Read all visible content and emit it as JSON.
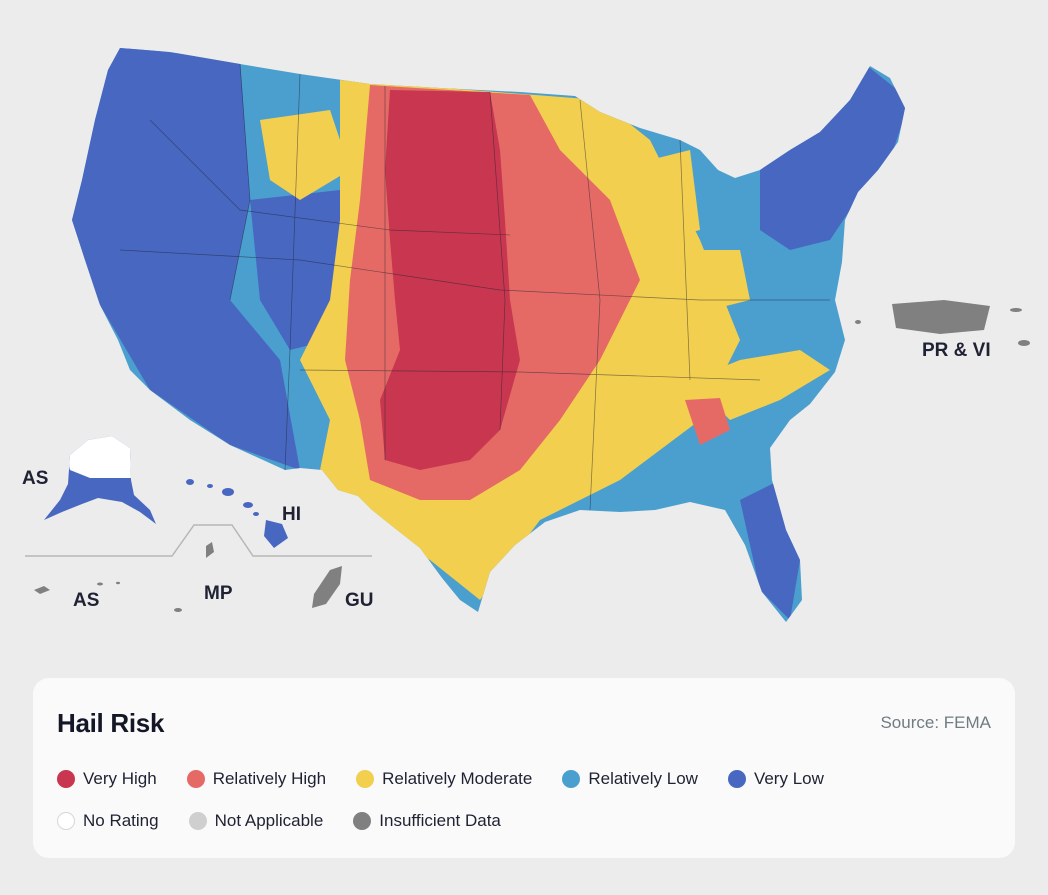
{
  "map": {
    "title": "Hail Risk",
    "source": "Source: FEMA",
    "region_labels": {
      "alaska": "AS",
      "hawaii": "HI",
      "american_samoa": "AS",
      "northern_mariana": "MP",
      "guam": "GU",
      "puerto_rico_vi": "PR & VI"
    }
  },
  "legend": {
    "row1": [
      {
        "key": "very_high",
        "label": "Very High",
        "color": "#c8374f"
      },
      {
        "key": "relatively_high",
        "label": "Relatively High",
        "color": "#e56a66"
      },
      {
        "key": "relatively_moderate",
        "label": "Relatively Moderate",
        "color": "#f2cf4e"
      },
      {
        "key": "relatively_low",
        "label": "Relatively Low",
        "color": "#4a9fcf"
      },
      {
        "key": "very_low",
        "label": "Very Low",
        "color": "#4867c1"
      }
    ],
    "row2": [
      {
        "key": "no_rating",
        "label": "No Rating",
        "color": "#ffffff"
      },
      {
        "key": "not_applicable",
        "label": "Not Applicable",
        "color": "#cfcfcf"
      },
      {
        "key": "insufficient_data",
        "label": "Insufficient Data",
        "color": "#808080"
      }
    ]
  }
}
